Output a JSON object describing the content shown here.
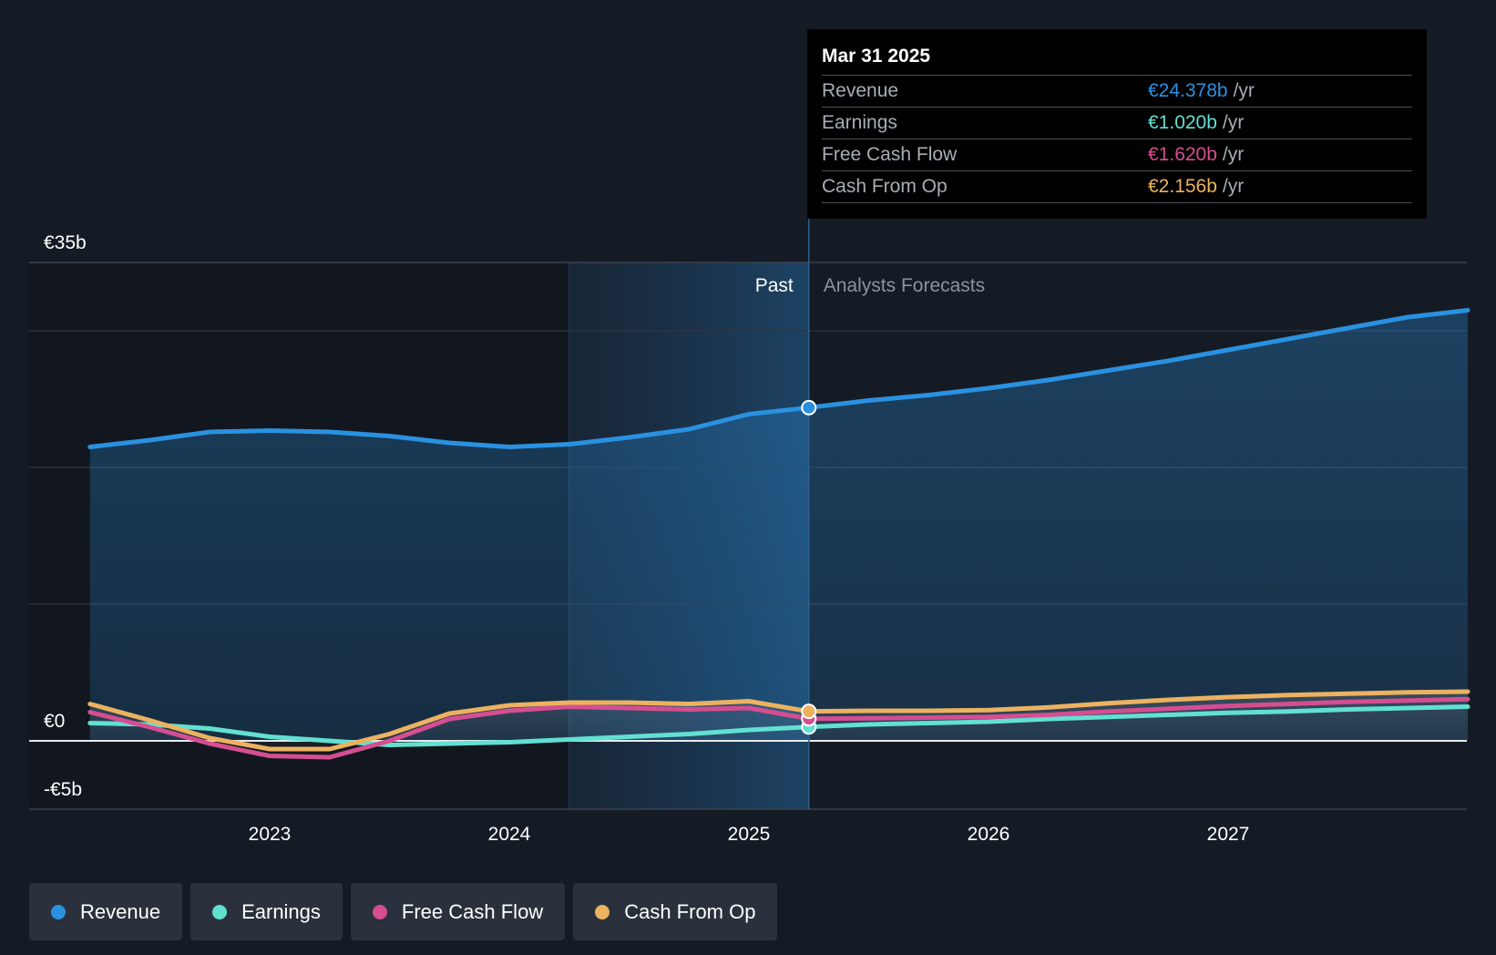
{
  "tooltip": {
    "date": "Mar 31 2025",
    "rows": [
      {
        "name": "Revenue",
        "value": "€24.378b",
        "unit": "/yr",
        "color": "#2a91e0"
      },
      {
        "name": "Earnings",
        "value": "€1.020b",
        "unit": "/yr",
        "color": "#62e0d2"
      },
      {
        "name": "Free Cash Flow",
        "value": "€1.620b",
        "unit": "/yr",
        "color": "#d44e91"
      },
      {
        "name": "Cash From Op",
        "value": "€2.156b",
        "unit": "/yr",
        "color": "#ecb260"
      }
    ]
  },
  "chart_data": {
    "type": "line",
    "ytick_labels": [
      "€35b",
      "€0",
      "-€5b"
    ],
    "xtick_labels": [
      "2023",
      "2024",
      "2025",
      "2026",
      "2027"
    ],
    "region_labels": {
      "past": "Past",
      "forecast": "Analysts Forecasts"
    },
    "ylim": [
      -5,
      35
    ],
    "xlim": [
      2022.0,
      2028.0
    ],
    "x_ticks": [
      2023,
      2024,
      2025,
      2026,
      2027
    ],
    "grid_values": [
      30,
      20,
      10
    ],
    "past_shade_start": 2024.25,
    "divider_x": 2025.25,
    "grid": true,
    "legend_position": "bottom-left",
    "series": [
      {
        "name": "Revenue",
        "color": "#2a91e0",
        "fill": true,
        "points": [
          [
            2022.25,
            21.5
          ],
          [
            2022.5,
            22.0
          ],
          [
            2022.75,
            22.6
          ],
          [
            2023.0,
            22.7
          ],
          [
            2023.25,
            22.6
          ],
          [
            2023.5,
            22.3
          ],
          [
            2023.75,
            21.8
          ],
          [
            2024.0,
            21.5
          ],
          [
            2024.25,
            21.7
          ],
          [
            2024.5,
            22.2
          ],
          [
            2024.75,
            22.8
          ],
          [
            2025.0,
            23.9
          ],
          [
            2025.25,
            24.378
          ],
          [
            2025.5,
            24.9
          ],
          [
            2025.75,
            25.3
          ],
          [
            2026.0,
            25.8
          ],
          [
            2026.25,
            26.4
          ],
          [
            2026.5,
            27.1
          ],
          [
            2026.75,
            27.8
          ],
          [
            2027.0,
            28.6
          ],
          [
            2027.25,
            29.4
          ],
          [
            2027.5,
            30.2
          ],
          [
            2027.75,
            31.0
          ],
          [
            2028.0,
            31.5
          ]
        ]
      },
      {
        "name": "Earnings",
        "color": "#62e0d2",
        "fill": false,
        "points": [
          [
            2022.25,
            1.3
          ],
          [
            2022.5,
            1.2
          ],
          [
            2022.75,
            0.9
          ],
          [
            2023.0,
            0.3
          ],
          [
            2023.25,
            0.0
          ],
          [
            2023.5,
            -0.3
          ],
          [
            2023.75,
            -0.2
          ],
          [
            2024.0,
            -0.1
          ],
          [
            2024.25,
            0.1
          ],
          [
            2024.5,
            0.3
          ],
          [
            2024.75,
            0.5
          ],
          [
            2025.0,
            0.8
          ],
          [
            2025.25,
            1.02
          ],
          [
            2025.5,
            1.2
          ],
          [
            2025.75,
            1.3
          ],
          [
            2026.0,
            1.4
          ],
          [
            2026.25,
            1.6
          ],
          [
            2026.5,
            1.75
          ],
          [
            2026.75,
            1.9
          ],
          [
            2027.0,
            2.05
          ],
          [
            2027.25,
            2.15
          ],
          [
            2027.5,
            2.3
          ],
          [
            2027.75,
            2.4
          ],
          [
            2028.0,
            2.5
          ]
        ]
      },
      {
        "name": "Free Cash Flow",
        "color": "#d44e91",
        "fill": false,
        "points": [
          [
            2022.25,
            2.1
          ],
          [
            2022.5,
            1.0
          ],
          [
            2022.75,
            -0.2
          ],
          [
            2023.0,
            -1.1
          ],
          [
            2023.25,
            -1.2
          ],
          [
            2023.5,
            0.0
          ],
          [
            2023.75,
            1.6
          ],
          [
            2024.0,
            2.2
          ],
          [
            2024.25,
            2.5
          ],
          [
            2024.5,
            2.4
          ],
          [
            2024.75,
            2.3
          ],
          [
            2025.0,
            2.4
          ],
          [
            2025.25,
            1.62
          ],
          [
            2025.5,
            1.65
          ],
          [
            2025.75,
            1.7
          ],
          [
            2026.0,
            1.75
          ],
          [
            2026.25,
            1.9
          ],
          [
            2026.5,
            2.15
          ],
          [
            2026.75,
            2.35
          ],
          [
            2027.0,
            2.55
          ],
          [
            2027.25,
            2.7
          ],
          [
            2027.5,
            2.85
          ],
          [
            2027.75,
            2.95
          ],
          [
            2028.0,
            3.05
          ]
        ]
      },
      {
        "name": "Cash From Op",
        "color": "#ecb260",
        "fill": false,
        "points": [
          [
            2022.25,
            2.7
          ],
          [
            2022.5,
            1.5
          ],
          [
            2022.75,
            0.2
          ],
          [
            2023.0,
            -0.6
          ],
          [
            2023.25,
            -0.6
          ],
          [
            2023.5,
            0.5
          ],
          [
            2023.75,
            2.0
          ],
          [
            2024.0,
            2.6
          ],
          [
            2024.25,
            2.8
          ],
          [
            2024.5,
            2.8
          ],
          [
            2024.75,
            2.7
          ],
          [
            2025.0,
            2.9
          ],
          [
            2025.25,
            2.156
          ],
          [
            2025.5,
            2.2
          ],
          [
            2025.75,
            2.2
          ],
          [
            2026.0,
            2.25
          ],
          [
            2026.25,
            2.45
          ],
          [
            2026.5,
            2.75
          ],
          [
            2026.75,
            3.0
          ],
          [
            2027.0,
            3.2
          ],
          [
            2027.25,
            3.35
          ],
          [
            2027.5,
            3.45
          ],
          [
            2027.75,
            3.55
          ],
          [
            2028.0,
            3.6
          ]
        ]
      }
    ]
  }
}
